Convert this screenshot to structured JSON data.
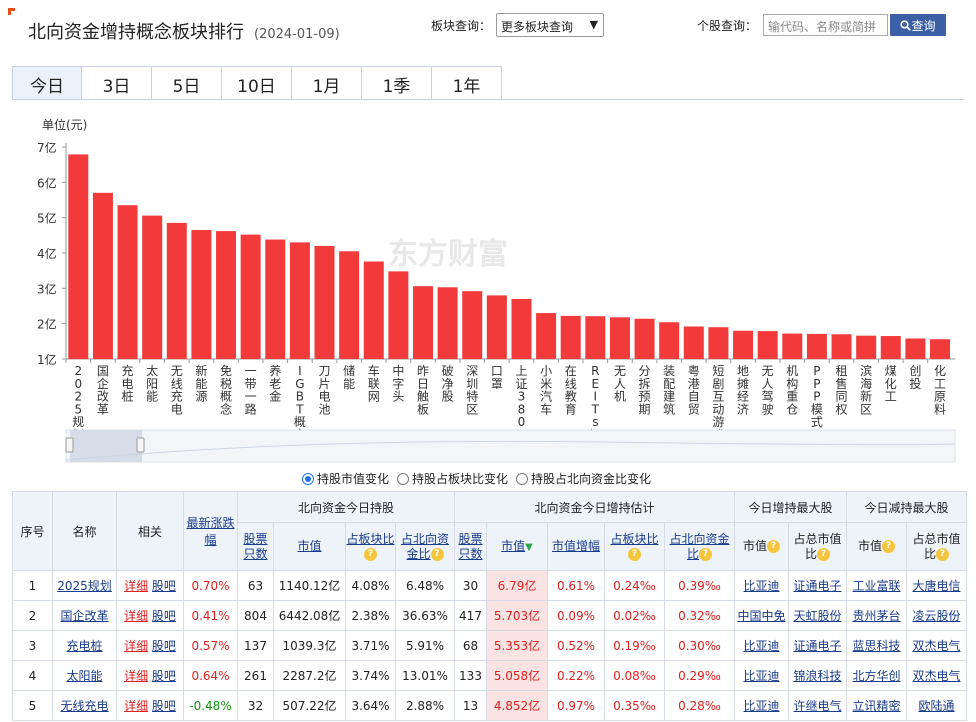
{
  "header": {
    "title": "北向资金增持概念板块排行",
    "date": "(2024-01-09)",
    "plate_label": "板块查询：",
    "plate_select": "更多板块查询",
    "stock_label": "个股查询：",
    "stock_placeholder": "输代码、名称或简拼",
    "search_label": "查询"
  },
  "tabs": [
    "今日",
    "3日",
    "5日",
    "10日",
    "1月",
    "1季",
    "1年"
  ],
  "radios": [
    "持股市值变化",
    "持股占板块比变化",
    "持股占北向资金比变化"
  ],
  "watermark": "东方财富",
  "chart_data": {
    "type": "bar",
    "ylabel": "单位(元)",
    "ylim": [
      1,
      7
    ],
    "yticks": [
      "1亿",
      "2亿",
      "3亿",
      "4亿",
      "5亿",
      "6亿",
      "7亿"
    ],
    "color": "#f23a3a",
    "categories": [
      "2025规划",
      "国企改革",
      "充电桩",
      "太阳能",
      "无线充电",
      "新能源",
      "免税概念",
      "一带一路",
      "养老金",
      "IGBT概念",
      "刀片电池",
      "储能",
      "车联网",
      "中字头",
      "昨日触板",
      "破净股",
      "深圳特区",
      "口罩",
      "上证380",
      "小米汽车",
      "在线教育",
      "REITs概念",
      "无人机",
      "分拆预期",
      "装配建筑",
      "粤港自贸",
      "短剧互动游戏",
      "地摊经济",
      "无人驾驶",
      "机构重仓",
      "PPP模式",
      "租售同权",
      "滨海新区",
      "煤化工",
      "创投",
      "化工原料"
    ],
    "values": [
      6.79,
      5.703,
      5.353,
      5.058,
      4.852,
      4.65,
      4.62,
      4.52,
      4.38,
      4.3,
      4.2,
      4.05,
      3.76,
      3.48,
      3.06,
      3.03,
      2.92,
      2.8,
      2.7,
      2.3,
      2.22,
      2.21,
      2.18,
      2.14,
      2.04,
      1.92,
      1.9,
      1.8,
      1.79,
      1.72,
      1.71,
      1.7,
      1.66,
      1.65,
      1.58,
      1.56
    ]
  },
  "table": {
    "top_headers": [
      "序号",
      "名称",
      "相关",
      "最新涨跌幅",
      "北向资金今日持股",
      "北向资金今日增持估计",
      "今日增持最大股",
      "今日减持最大股"
    ],
    "sub_headers": [
      "股票只数",
      "市值",
      "占板块比",
      "占北向资金比",
      "股票只数",
      "市值",
      "市值增幅",
      "占板块比",
      "占北向资金比",
      "市值",
      "占总市值比",
      "市值",
      "占总市值比"
    ],
    "detail_label": "详细",
    "bar_label": "股吧",
    "rows": [
      {
        "no": "1",
        "name": "2025规划",
        "chg": "0.70%",
        "dir": "up",
        "h_cnt": "63",
        "h_val": "1140.12亿",
        "h_plate": "4.08%",
        "h_nb": "6.48%",
        "a_cnt": "30",
        "a_val": "6.79亿",
        "a_inc": "0.61%",
        "a_plate": "0.24‰",
        "a_nb": "0.39‰",
        "inc_val": "比亚迪",
        "inc_ratio": "证通电子",
        "dec_val": "工业富联",
        "dec_ratio": "大唐电信"
      },
      {
        "no": "2",
        "name": "国企改革",
        "chg": "0.41%",
        "dir": "up",
        "h_cnt": "804",
        "h_val": "6442.08亿",
        "h_plate": "2.38%",
        "h_nb": "36.63%",
        "a_cnt": "417",
        "a_val": "5.703亿",
        "a_inc": "0.09%",
        "a_plate": "0.02‰",
        "a_nb": "0.32‰",
        "inc_val": "中国中免",
        "inc_ratio": "天虹股份",
        "dec_val": "贵州茅台",
        "dec_ratio": "凌云股份"
      },
      {
        "no": "3",
        "name": "充电桩",
        "chg": "0.57%",
        "dir": "up",
        "h_cnt": "137",
        "h_val": "1039.3亿",
        "h_plate": "3.71%",
        "h_nb": "5.91%",
        "a_cnt": "68",
        "a_val": "5.353亿",
        "a_inc": "0.52%",
        "a_plate": "0.19‰",
        "a_nb": "0.30‰",
        "inc_val": "比亚迪",
        "inc_ratio": "证通电子",
        "dec_val": "蓝思科技",
        "dec_ratio": "双杰电气"
      },
      {
        "no": "4",
        "name": "太阳能",
        "chg": "0.64%",
        "dir": "up",
        "h_cnt": "261",
        "h_val": "2287.2亿",
        "h_plate": "3.74%",
        "h_nb": "13.01%",
        "a_cnt": "133",
        "a_val": "5.058亿",
        "a_inc": "0.22%",
        "a_plate": "0.08‰",
        "a_nb": "0.29‰",
        "inc_val": "比亚迪",
        "inc_ratio": "锦浪科技",
        "dec_val": "北方华创",
        "dec_ratio": "双杰电气"
      },
      {
        "no": "5",
        "name": "无线充电",
        "chg": "-0.48%",
        "dir": "down",
        "h_cnt": "32",
        "h_val": "507.22亿",
        "h_plate": "3.64%",
        "h_nb": "2.88%",
        "a_cnt": "13",
        "a_val": "4.852亿",
        "a_inc": "0.97%",
        "a_plate": "0.35‰",
        "a_nb": "0.28‰",
        "inc_val": "比亚迪",
        "inc_ratio": "许继电气",
        "dec_val": "立讯精密",
        "dec_ratio": "欧陆通"
      }
    ]
  }
}
